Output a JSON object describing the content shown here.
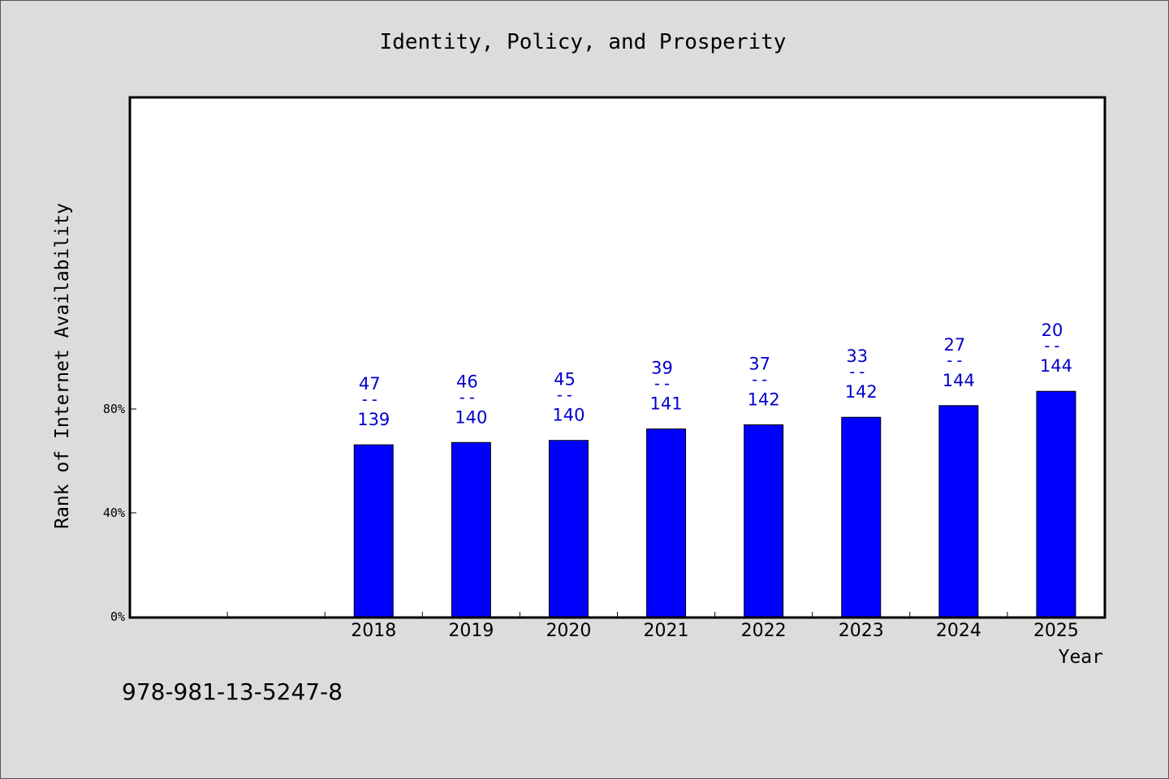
{
  "chart_data": {
    "type": "bar",
    "title": "Identity, Policy, and Prosperity",
    "xlabel": "Year",
    "ylabel": "Rank of Internet Availability",
    "categories": [
      "2018",
      "2019",
      "2020",
      "2021",
      "2022",
      "2023",
      "2024",
      "2025"
    ],
    "values": [
      66.2,
      67.1,
      67.9,
      72.3,
      73.9,
      76.8,
      81.3,
      86.8
    ],
    "bar_labels": [
      {
        "rank": "47",
        "sep": "--",
        "total": "139"
      },
      {
        "rank": "46",
        "sep": "--",
        "total": "140"
      },
      {
        "rank": "45",
        "sep": "--",
        "total": "140"
      },
      {
        "rank": "39",
        "sep": "--",
        "total": "141"
      },
      {
        "rank": "37",
        "sep": "--",
        "total": "142"
      },
      {
        "rank": "33",
        "sep": "--",
        "total": "142"
      },
      {
        "rank": "27",
        "sep": "--",
        "total": "144"
      },
      {
        "rank": "20",
        "sep": "--",
        "total": "144"
      }
    ],
    "yticks": [
      {
        "value": 0,
        "label": "0%"
      },
      {
        "value": 40,
        "label": "40%"
      },
      {
        "value": 80,
        "label": "80%"
      }
    ],
    "ylim": [
      0,
      100
    ],
    "x_slots": 10,
    "first_bar_slot": 2,
    "grid": false,
    "bar_color": "#0000ff",
    "label_color": "#0000cc"
  },
  "footer": {
    "isbn": "978-981-13-5247-8"
  }
}
